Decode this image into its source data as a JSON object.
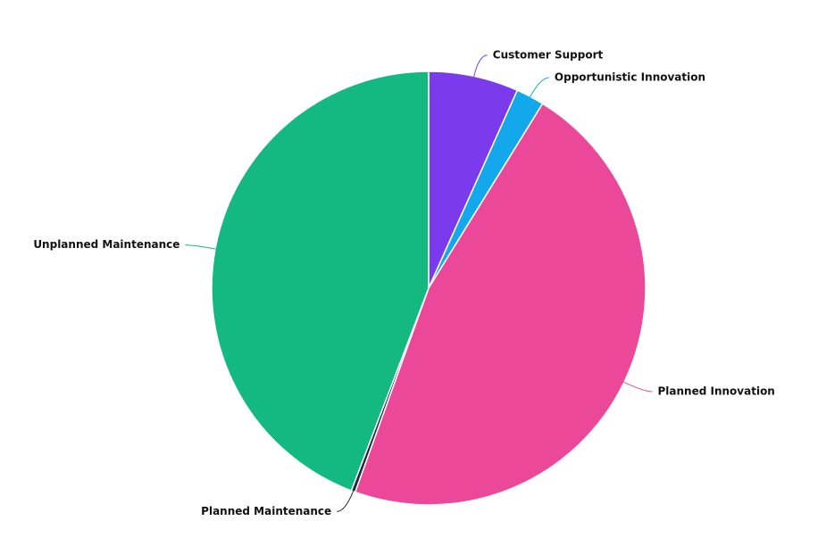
{
  "chart_data": {
    "type": "pie",
    "categories": [
      "Customer Support",
      "Opportunistic Innovation",
      "Planned Innovation",
      "Planned Maintenance",
      "Unplanned Maintenance"
    ],
    "values": [
      6.7,
      2.1,
      46.7,
      0.3,
      44.2
    ],
    "colors": [
      "#7c3aed",
      "#13a8ec",
      "#ec4899",
      "#1f2937",
      "#13b981"
    ]
  }
}
